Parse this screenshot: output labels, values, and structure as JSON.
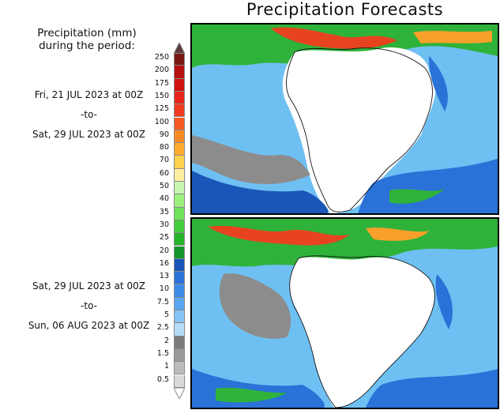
{
  "title": "Precipitation Forecasts",
  "legend": {
    "title_line1": "Precipitation (mm)",
    "title_line2": "during the period:",
    "levels": [
      "250",
      "200",
      "175",
      "150",
      "125",
      "100",
      "90",
      "80",
      "70",
      "60",
      "50",
      "40",
      "35",
      "30",
      "25",
      "20",
      "16",
      "13",
      "10",
      "7.5",
      "5",
      "2.5",
      "2",
      "1.5",
      "1",
      "0.5"
    ],
    "colors": [
      "#7a1712",
      "#b80f0f",
      "#d0120f",
      "#e6251a",
      "#f23a21",
      "#f85a25",
      "#f98a23",
      "#ffac2e",
      "#ffd24d",
      "#fff0a0",
      "#c8f5b0",
      "#9ef07e",
      "#6fe45a",
      "#42cf3b",
      "#25b52a",
      "#14962a",
      "#1a56b8",
      "#2a72d8",
      "#3c8ce8",
      "#5aa5f0",
      "#86c4f5",
      "#b5dcf8",
      "#7a7a7a",
      "#9a9a9a",
      "#bcbcbc",
      "#dadada"
    ]
  },
  "periods": [
    {
      "start": "Fri, 21 JUL 2023 at 00Z",
      "sep": "-to-",
      "end": "Sat, 29 JUL 2023 at 00Z"
    },
    {
      "start": "Sat, 29 JUL 2023 at 00Z",
      "sep": "-to-",
      "end": "Sun, 06 AUG 2023 at 00Z"
    }
  ],
  "maps": [
    {
      "name": "forecast-map-week1"
    },
    {
      "name": "forecast-map-week2"
    }
  ]
}
